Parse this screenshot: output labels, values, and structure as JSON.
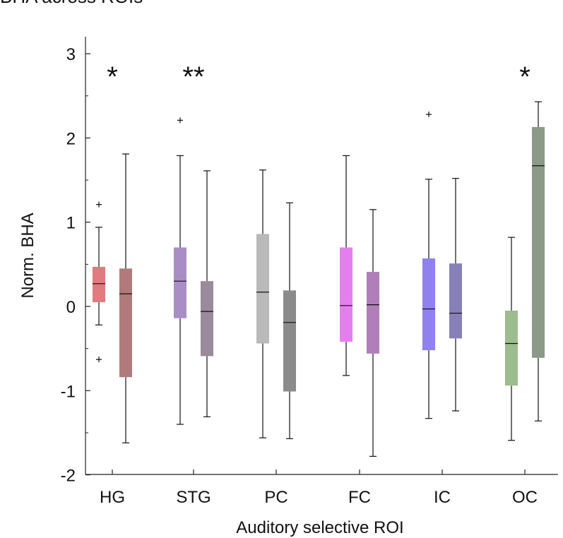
{
  "chart_data": {
    "type": "box",
    "title": "BHA across ROIs",
    "xlabel": "Auditory selective ROI",
    "ylabel": "Norm. BHA",
    "ylim": [
      -2,
      3
    ],
    "yticks": [
      -2,
      -1,
      0,
      1,
      2,
      3
    ],
    "ytick_labels": [
      "-2",
      "-1",
      "0",
      "1",
      "2",
      "3"
    ],
    "categories": [
      "HG",
      "STG",
      "PC",
      "FC",
      "IC",
      "OC"
    ],
    "groups": [
      {
        "category": "HG",
        "significance": "*",
        "boxes": [
          {
            "min": -0.22,
            "q1": 0.05,
            "median": 0.27,
            "q3": 0.47,
            "max": 0.94,
            "outliers": [
              1.21,
              -0.63
            ],
            "color": "#e07b80"
          },
          {
            "min": -1.62,
            "q1": -0.84,
            "median": 0.15,
            "q3": 0.45,
            "max": 1.81,
            "outliers": [],
            "color": "#b07a7b"
          }
        ]
      },
      {
        "category": "STG",
        "significance": "**",
        "boxes": [
          {
            "min": -1.4,
            "q1": -0.14,
            "median": 0.3,
            "q3": 0.7,
            "max": 1.79,
            "outliers": [
              2.21
            ],
            "color": "#a98ec6"
          },
          {
            "min": -1.31,
            "q1": -0.59,
            "median": -0.06,
            "q3": 0.3,
            "max": 1.61,
            "outliers": [],
            "color": "#9a8a9b"
          }
        ]
      },
      {
        "category": "PC",
        "significance": "",
        "boxes": [
          {
            "min": -1.56,
            "q1": -0.44,
            "median": 0.17,
            "q3": 0.86,
            "max": 1.62,
            "outliers": [],
            "color": "#b9b9b9"
          },
          {
            "min": -1.57,
            "q1": -1.01,
            "median": -0.19,
            "q3": 0.19,
            "max": 1.23,
            "outliers": [],
            "color": "#8b8b8b"
          }
        ]
      },
      {
        "category": "FC",
        "significance": "",
        "boxes": [
          {
            "min": -0.82,
            "q1": -0.42,
            "median": 0.01,
            "q3": 0.7,
            "max": 1.79,
            "outliers": [],
            "color": "#e57ff0"
          },
          {
            "min": -1.78,
            "q1": -0.56,
            "median": 0.02,
            "q3": 0.41,
            "max": 1.15,
            "outliers": [],
            "color": "#b07eb9"
          }
        ]
      },
      {
        "category": "IC",
        "significance": "",
        "boxes": [
          {
            "min": -1.33,
            "q1": -0.52,
            "median": -0.03,
            "q3": 0.57,
            "max": 1.51,
            "outliers": [
              2.28
            ],
            "color": "#9181ee"
          },
          {
            "min": -1.24,
            "q1": -0.38,
            "median": -0.08,
            "q3": 0.51,
            "max": 1.52,
            "outliers": [],
            "color": "#877fb8"
          }
        ]
      },
      {
        "category": "OC",
        "significance": "*",
        "boxes": [
          {
            "min": -1.59,
            "q1": -0.94,
            "median": -0.44,
            "q3": -0.05,
            "max": 0.82,
            "outliers": [],
            "color": "#9dbd8e"
          },
          {
            "min": -1.36,
            "q1": -0.61,
            "median": 1.67,
            "q3": 2.13,
            "max": 2.43,
            "outliers": [],
            "color": "#8a9a87"
          }
        ]
      }
    ]
  }
}
